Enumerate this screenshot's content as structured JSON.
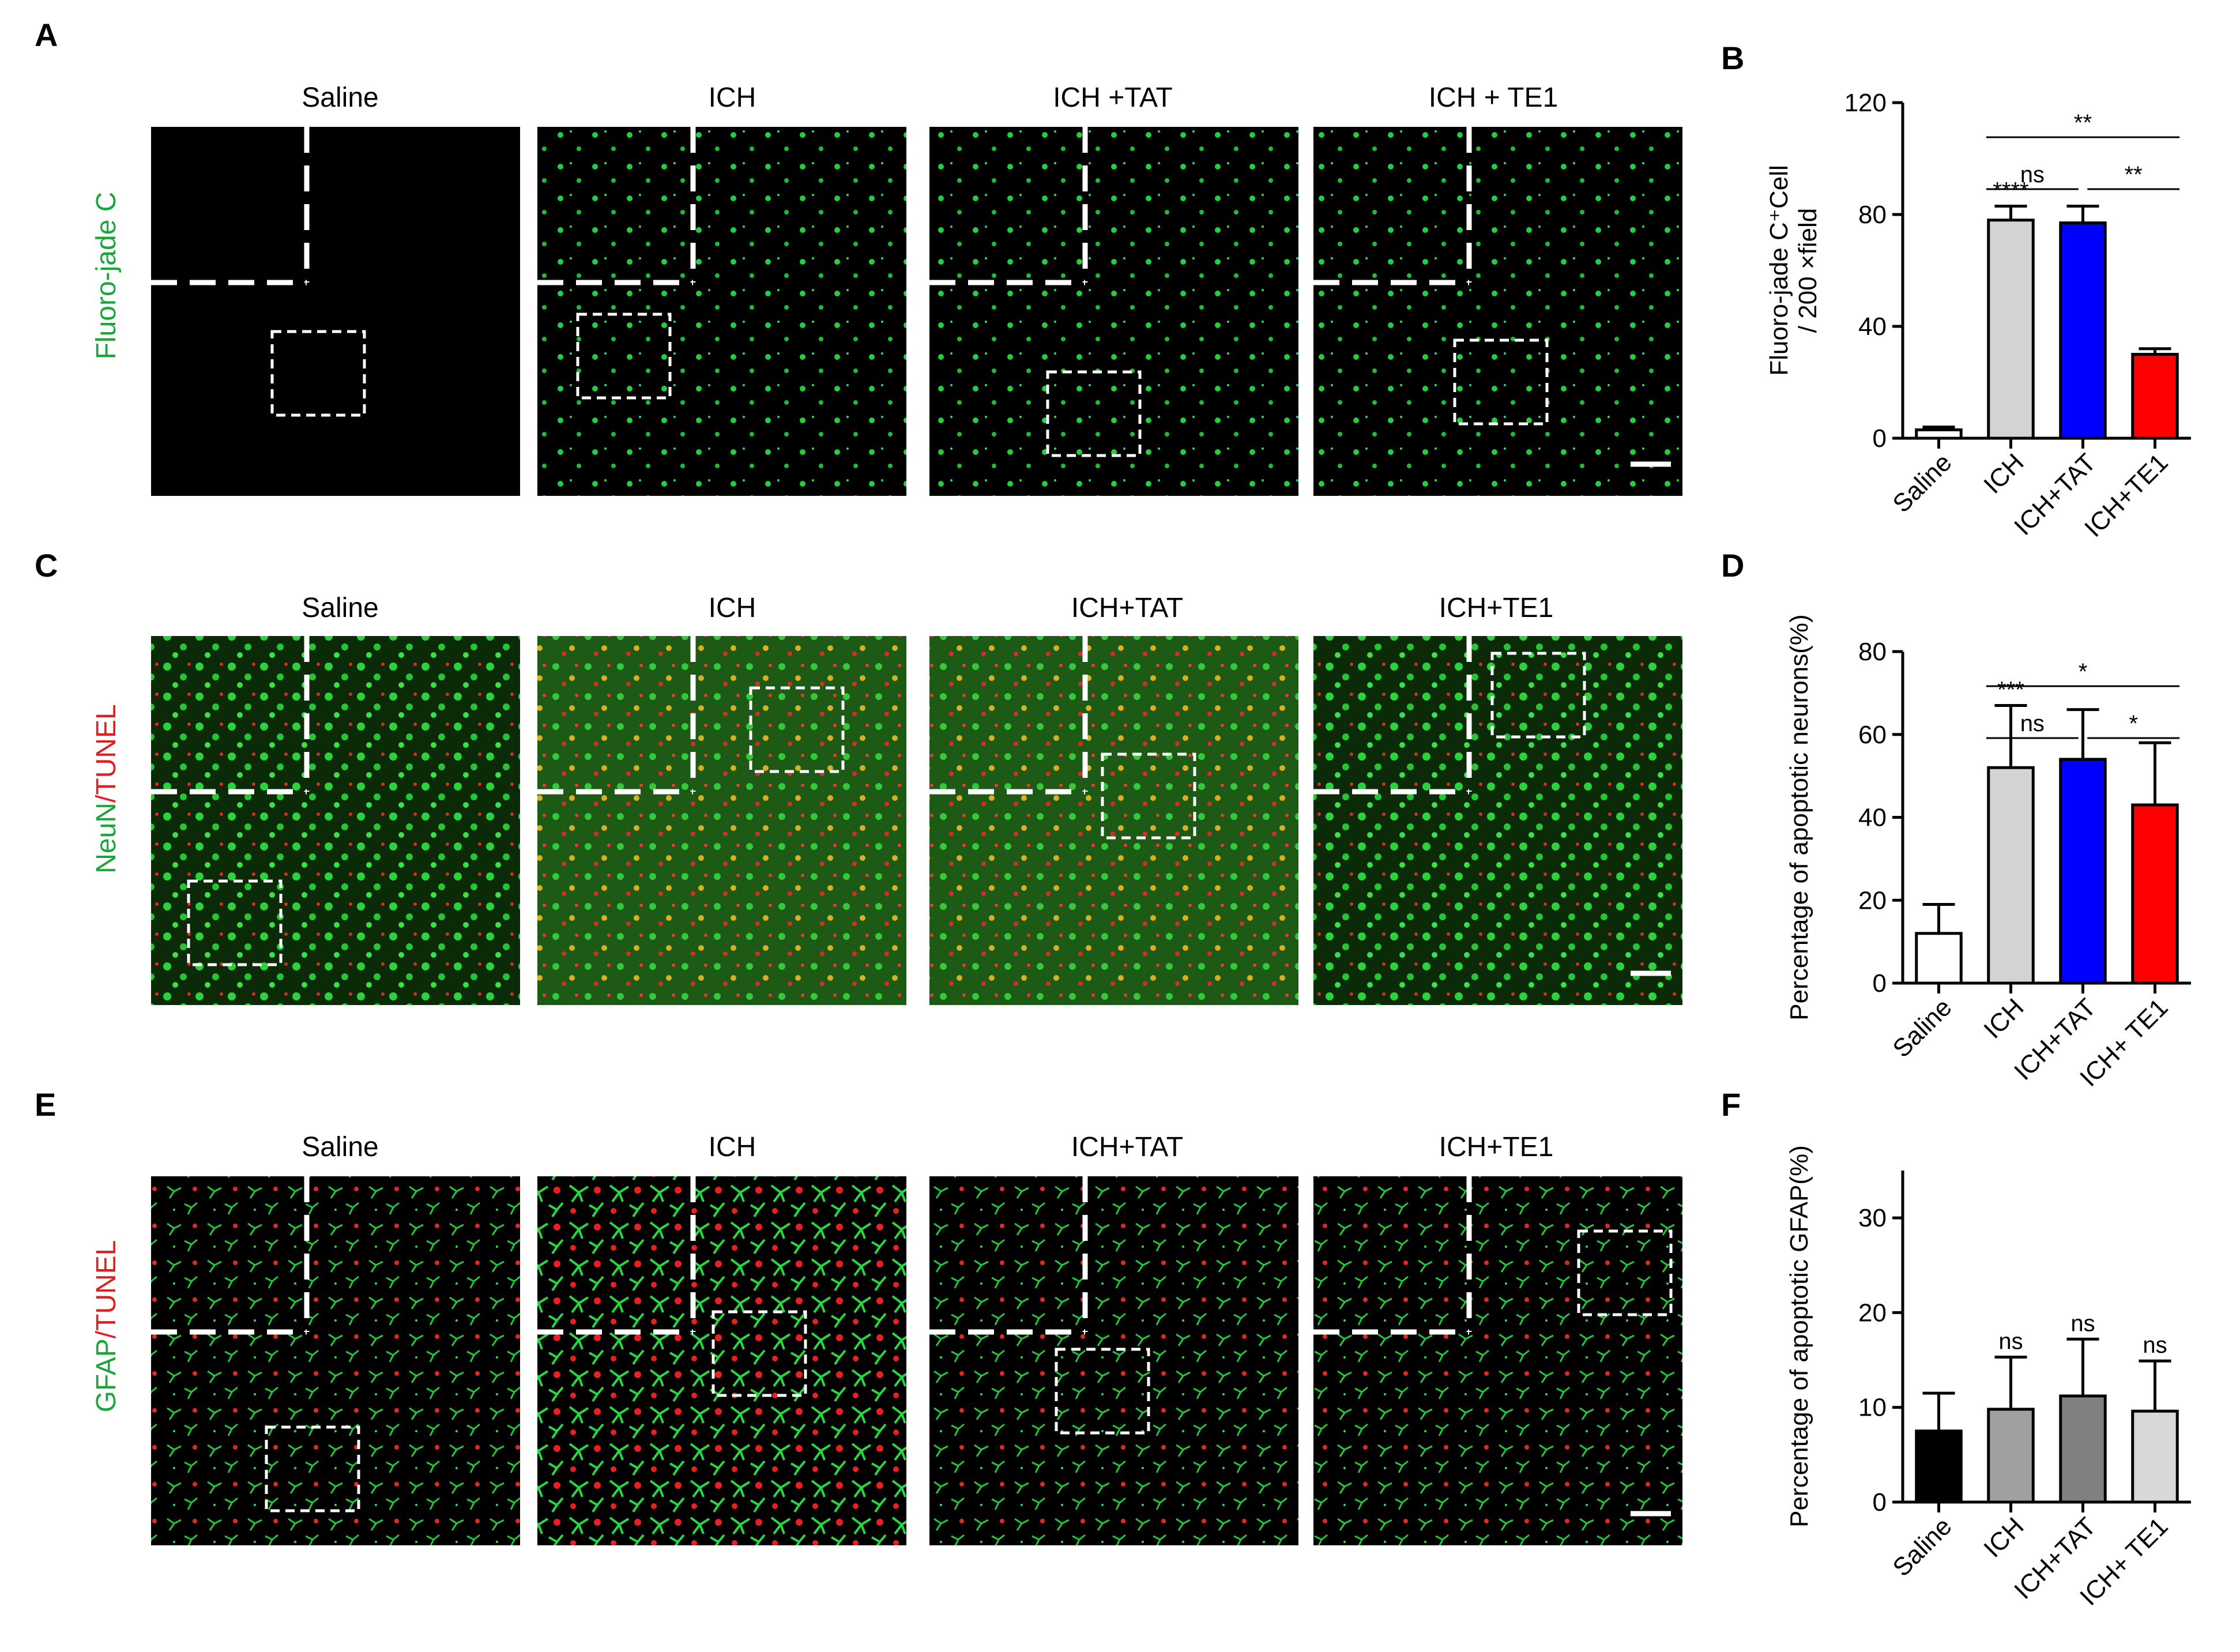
{
  "panel_letters": [
    "A",
    "B",
    "C",
    "D",
    "E",
    "F"
  ],
  "image_rows": [
    {
      "label": "Fluoro-jade C",
      "label_color": "#1aa63a",
      "columns": [
        "Saline",
        "ICH",
        "ICH +TAT",
        "ICH + TE1"
      ]
    },
    {
      "label_parts": [
        {
          "text": "NeuN",
          "color": "#1aa63a"
        },
        {
          "text": "/TUNEL",
          "color": "#e02020"
        }
      ],
      "columns": [
        "Saline",
        "ICH",
        "ICH+TAT",
        "ICH+TE1"
      ]
    },
    {
      "label_parts": [
        {
          "text": "GFAP",
          "color": "#1aa63a"
        },
        {
          "text": "/TUNEL",
          "color": "#e02020"
        }
      ],
      "columns": [
        "Saline",
        "ICH",
        "ICH+TAT",
        "ICH+TE1"
      ]
    }
  ],
  "chart_data": [
    {
      "panel": "B",
      "type": "bar",
      "categories": [
        "Saline",
        "ICH",
        "ICH+TAT",
        "ICH+TE1"
      ],
      "values": [
        3,
        78,
        77,
        30
      ],
      "errors": [
        1,
        5,
        6,
        2
      ],
      "ylabel_line1": "Fluoro-jade C⁺Cell",
      "ylabel_line2": "/ 200 ×field",
      "ylim": [
        0,
        120
      ],
      "yticks": [
        "0",
        "40",
        "80",
        "120"
      ],
      "colors": [
        "#ffffff",
        "#d3d3d3",
        "#0000ff",
        "#ff0000"
      ],
      "above_bar_labels": [
        "",
        "****",
        "",
        ""
      ],
      "comparisons": [
        {
          "from": 1,
          "to": 3,
          "label": "**"
        },
        {
          "from": 1,
          "to": 2,
          "label": "ns"
        },
        {
          "from": 2,
          "to": 3,
          "label": "**"
        }
      ]
    },
    {
      "panel": "D",
      "type": "bar",
      "categories": [
        "Saline",
        "ICH",
        "ICH+TAT",
        "ICH+ TE1"
      ],
      "values": [
        12,
        52,
        54,
        43
      ],
      "errors": [
        7,
        15,
        12,
        15
      ],
      "ylabel": "Percentage of apoptotic neurons(%)",
      "ylim": [
        0,
        80
      ],
      "yticks": [
        "0",
        "20",
        "40",
        "60",
        "80"
      ],
      "colors": [
        "#ffffff",
        "#d3d3d3",
        "#0000ff",
        "#ff0000"
      ],
      "above_bar_labels": [
        "",
        "***",
        "",
        ""
      ],
      "comparisons": [
        {
          "from": 1,
          "to": 3,
          "label": "*"
        },
        {
          "from": 1,
          "to": 2,
          "label": "ns"
        },
        {
          "from": 2,
          "to": 3,
          "label": "*"
        }
      ]
    },
    {
      "panel": "F",
      "type": "bar",
      "categories": [
        "Saline",
        "ICH",
        "ICH+TAT",
        "ICH+ TE1"
      ],
      "values": [
        7.5,
        9.8,
        11.2,
        9.6
      ],
      "errors": [
        4,
        5.5,
        6,
        5.3
      ],
      "ylabel": "Percentage of apoptotic GFAP(%)",
      "ylim": [
        0,
        35
      ],
      "yticks": [
        "0",
        "10",
        "20",
        "30"
      ],
      "colors": [
        "#000000",
        "#a0a0a0",
        "#808080",
        "#d8d8d8"
      ],
      "above_bar_labels": [
        "",
        "ns",
        "ns",
        "ns"
      ],
      "comparisons": []
    }
  ]
}
